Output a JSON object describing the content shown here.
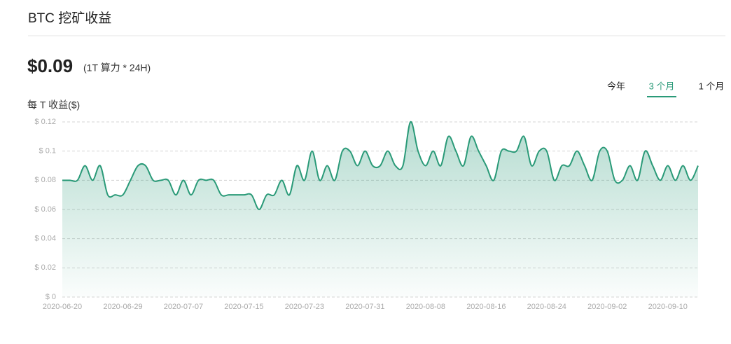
{
  "header": {
    "title": "BTC 挖矿收益"
  },
  "summary": {
    "price": "$0.09",
    "note": "(1T 算力 * 24H)"
  },
  "tabs": [
    "今年",
    "3 个月",
    "1 个月"
  ],
  "active_tab": 1,
  "chart_data": {
    "type": "line",
    "y_label": "每 T 收益($)",
    "color": "#2a9a78",
    "area": true,
    "grid": true,
    "ylim": [
      0,
      0.12
    ],
    "yticks": [
      {
        "value": 0,
        "label": "$ 0"
      },
      {
        "value": 0.02,
        "label": "$ 0.02"
      },
      {
        "value": 0.04,
        "label": "$ 0.04"
      },
      {
        "value": 0.06,
        "label": "$ 0.06"
      },
      {
        "value": 0.08,
        "label": "$ 0.08"
      },
      {
        "value": 0.1,
        "label": "$ 0.1"
      },
      {
        "value": 0.12,
        "label": "$ 0.12"
      }
    ],
    "categories": [
      "2020-06-20",
      null,
      null,
      null,
      null,
      null,
      null,
      null,
      "2020-06-29",
      null,
      null,
      null,
      null,
      null,
      null,
      null,
      "2020-07-07",
      null,
      null,
      null,
      null,
      null,
      null,
      null,
      "2020-07-15",
      null,
      null,
      null,
      null,
      null,
      null,
      null,
      "2020-07-23",
      null,
      null,
      null,
      null,
      null,
      null,
      null,
      "2020-07-31",
      null,
      null,
      null,
      null,
      null,
      null,
      null,
      "2020-08-08",
      null,
      null,
      null,
      null,
      null,
      null,
      null,
      "2020-08-16",
      null,
      null,
      null,
      null,
      null,
      null,
      null,
      "2020-08-24",
      null,
      null,
      null,
      null,
      null,
      null,
      null,
      "2020-09-02",
      null,
      null,
      null,
      null,
      null,
      null,
      null,
      "2020-09-10",
      null,
      null,
      null,
      null
    ],
    "values": [
      0.08,
      0.08,
      0.08,
      0.09,
      0.08,
      0.09,
      0.07,
      0.07,
      0.07,
      0.08,
      0.09,
      0.09,
      0.08,
      0.08,
      0.08,
      0.07,
      0.08,
      0.07,
      0.08,
      0.08,
      0.08,
      0.07,
      0.07,
      0.07,
      0.07,
      0.07,
      0.06,
      0.07,
      0.07,
      0.08,
      0.07,
      0.09,
      0.08,
      0.1,
      0.08,
      0.09,
      0.08,
      0.1,
      0.1,
      0.09,
      0.1,
      0.09,
      0.09,
      0.1,
      0.09,
      0.09,
      0.12,
      0.1,
      0.09,
      0.1,
      0.09,
      0.11,
      0.1,
      0.09,
      0.11,
      0.1,
      0.09,
      0.08,
      0.1,
      0.1,
      0.1,
      0.11,
      0.09,
      0.1,
      0.1,
      0.08,
      0.09,
      0.09,
      0.1,
      0.09,
      0.08,
      0.1,
      0.1,
      0.08,
      0.08,
      0.09,
      0.08,
      0.1,
      0.09,
      0.08,
      0.09,
      0.08,
      0.09,
      0.08,
      0.09
    ]
  }
}
